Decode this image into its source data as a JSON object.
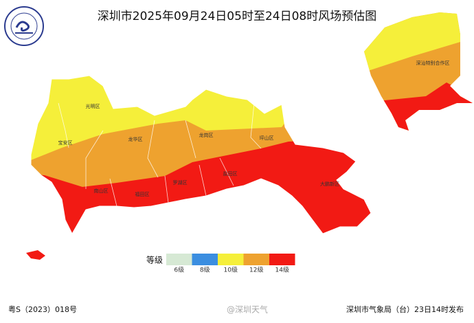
{
  "header": {
    "title": "深圳市2025年09月24日05时至24日08时风场预估图"
  },
  "districts": [
    {
      "label": "光明区"
    },
    {
      "label": "宝安区"
    },
    {
      "label": "龙华区"
    },
    {
      "label": "龙岗区"
    },
    {
      "label": "坪山区"
    },
    {
      "label": "深汕特别合作区"
    },
    {
      "label": "南山区"
    },
    {
      "label": "福田区"
    },
    {
      "label": "罗湖区"
    },
    {
      "label": "盐田区"
    },
    {
      "label": "大鹏新区"
    }
  ],
  "legend": {
    "title": "等级",
    "items": [
      {
        "label": "6级",
        "color": "#d6e9d4"
      },
      {
        "label": "8级",
        "color": "#3b8ee0"
      },
      {
        "label": "10级",
        "color": "#f5ef3a"
      },
      {
        "label": "12级",
        "color": "#eea22f"
      },
      {
        "label": "14级",
        "color": "#f21a14"
      }
    ]
  },
  "footer": {
    "license": "粤S（2023）018号",
    "watermark": "@深圳天气",
    "issuer": "深圳市气象局（台）23日14时发布"
  }
}
